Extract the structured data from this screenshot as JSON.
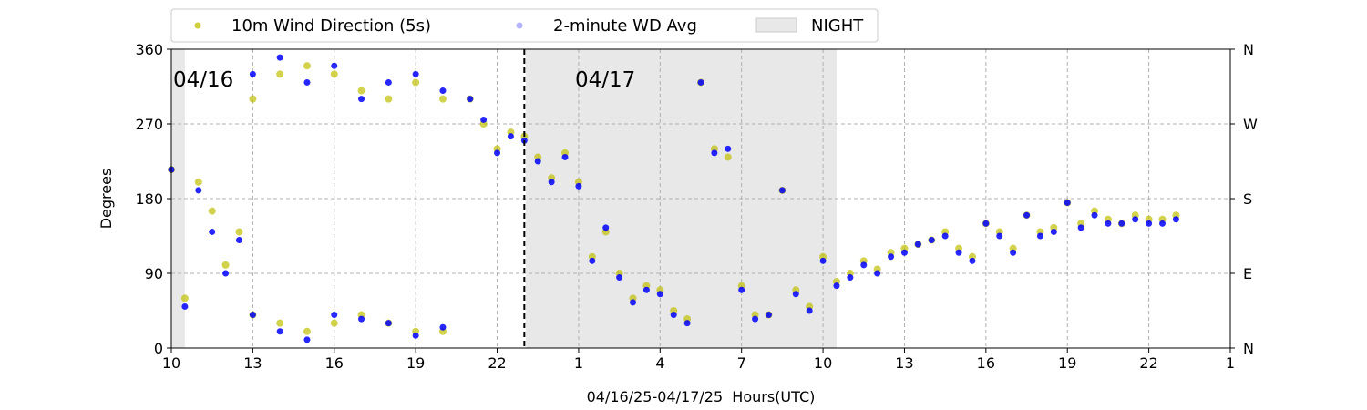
{
  "chart_data": {
    "type": "scatter",
    "title": "",
    "xlabel": "04/16/25-04/17/25  Hours(UTC)",
    "ylabel": "Degrees",
    "ylim": [
      0,
      360
    ],
    "xlim_hours": [
      10,
      49
    ],
    "x_tick_labels": [
      "10",
      "13",
      "16",
      "19",
      "22",
      "1",
      "4",
      "7",
      "10",
      "13",
      "16",
      "19",
      "22",
      "1"
    ],
    "x_tick_hours": [
      10,
      13,
      16,
      19,
      22,
      25,
      28,
      31,
      34,
      37,
      40,
      43,
      46,
      49
    ],
    "y_ticks": [
      0,
      90,
      180,
      270,
      360
    ],
    "y_tick_labels": [
      "0",
      "90",
      "180",
      "270",
      "360"
    ],
    "right_axis_labels": [
      "N",
      "E",
      "S",
      "W",
      "N"
    ],
    "grid": true,
    "legend_position": "top-left, above plot",
    "day_labels": [
      {
        "text": "04/16",
        "hour": 10
      },
      {
        "text": "04/17",
        "hour": 24.8
      }
    ],
    "midnight_hour": 23.0,
    "night_spans": [
      [
        10.0,
        10.5
      ],
      [
        23.05,
        34.5
      ]
    ],
    "series": [
      {
        "name": "10m Wind Direction (5s)",
        "color": "#bfbf00",
        "values": [
          [
            10.0,
            215
          ],
          [
            10.5,
            60
          ],
          [
            11,
            200
          ],
          [
            11.5,
            165
          ],
          [
            12,
            100
          ],
          [
            12.5,
            140
          ],
          [
            13,
            40
          ],
          [
            13,
            300
          ],
          [
            14,
            30
          ],
          [
            14,
            330
          ],
          [
            15,
            20
          ],
          [
            15,
            340
          ],
          [
            16,
            30
          ],
          [
            16,
            330
          ],
          [
            17,
            40
          ],
          [
            17,
            310
          ],
          [
            18,
            30
          ],
          [
            18,
            300
          ],
          [
            19,
            20
          ],
          [
            19,
            320
          ],
          [
            20,
            300
          ],
          [
            20,
            20
          ],
          [
            21,
            300
          ],
          [
            21.5,
            270
          ],
          [
            22,
            240
          ],
          [
            22.5,
            260
          ],
          [
            23,
            255
          ],
          [
            23.5,
            230
          ],
          [
            24,
            205
          ],
          [
            24.5,
            235
          ],
          [
            25,
            200
          ],
          [
            25.5,
            110
          ],
          [
            26,
            140
          ],
          [
            26.5,
            90
          ],
          [
            27,
            60
          ],
          [
            27.5,
            75
          ],
          [
            28,
            70
          ],
          [
            28.5,
            45
          ],
          [
            29,
            35
          ],
          [
            29.5,
            320
          ],
          [
            30,
            240
          ],
          [
            30.5,
            230
          ],
          [
            31,
            75
          ],
          [
            31.5,
            40
          ],
          [
            32,
            40
          ],
          [
            32.5,
            190
          ],
          [
            33,
            70
          ],
          [
            33.5,
            50
          ],
          [
            34,
            110
          ],
          [
            34.5,
            80
          ],
          [
            35,
            90
          ],
          [
            35.5,
            105
          ],
          [
            36,
            95
          ],
          [
            36.5,
            115
          ],
          [
            37,
            120
          ],
          [
            37.5,
            125
          ],
          [
            38,
            130
          ],
          [
            38.5,
            140
          ],
          [
            39,
            120
          ],
          [
            39.5,
            110
          ],
          [
            40,
            150
          ],
          [
            40.5,
            140
          ],
          [
            41,
            120
          ],
          [
            41.5,
            160
          ],
          [
            42,
            140
          ],
          [
            42.5,
            145
          ],
          [
            43,
            175
          ],
          [
            43.5,
            150
          ],
          [
            44,
            165
          ],
          [
            44.5,
            155
          ],
          [
            45,
            150
          ],
          [
            45.5,
            160
          ],
          [
            46,
            155
          ],
          [
            46.5,
            155
          ],
          [
            47,
            160
          ]
        ]
      },
      {
        "name": "2-minute WD Avg",
        "color": "#0000ff",
        "values": [
          [
            10.0,
            215
          ],
          [
            10.5,
            50
          ],
          [
            11,
            190
          ],
          [
            11.5,
            140
          ],
          [
            12,
            90
          ],
          [
            12.5,
            130
          ],
          [
            13,
            330
          ],
          [
            13,
            40
          ],
          [
            14,
            350
          ],
          [
            14,
            20
          ],
          [
            15,
            320
          ],
          [
            15,
            10
          ],
          [
            16,
            340
          ],
          [
            16,
            40
          ],
          [
            17,
            300
          ],
          [
            17,
            35
          ],
          [
            18,
            320
          ],
          [
            18,
            30
          ],
          [
            19,
            330
          ],
          [
            19,
            15
          ],
          [
            20,
            310
          ],
          [
            20,
            25
          ],
          [
            21,
            300
          ],
          [
            21.5,
            275
          ],
          [
            22,
            235
          ],
          [
            22.5,
            255
          ],
          [
            23,
            250
          ],
          [
            23.5,
            225
          ],
          [
            24,
            200
          ],
          [
            24.5,
            230
          ],
          [
            25,
            195
          ],
          [
            25.5,
            105
          ],
          [
            26,
            145
          ],
          [
            26.5,
            85
          ],
          [
            27,
            55
          ],
          [
            27.5,
            70
          ],
          [
            28,
            65
          ],
          [
            28.5,
            40
          ],
          [
            29,
            30
          ],
          [
            29.5,
            320
          ],
          [
            30,
            235
          ],
          [
            30.5,
            240
          ],
          [
            31,
            70
          ],
          [
            31.5,
            35
          ],
          [
            32,
            40
          ],
          [
            32.5,
            190
          ],
          [
            33,
            65
          ],
          [
            33.5,
            45
          ],
          [
            34,
            105
          ],
          [
            34.5,
            75
          ],
          [
            35,
            85
          ],
          [
            35.5,
            100
          ],
          [
            36,
            90
          ],
          [
            36.5,
            110
          ],
          [
            37,
            115
          ],
          [
            37.5,
            125
          ],
          [
            38,
            130
          ],
          [
            38.5,
            135
          ],
          [
            39,
            115
          ],
          [
            39.5,
            105
          ],
          [
            40,
            150
          ],
          [
            40.5,
            135
          ],
          [
            41,
            115
          ],
          [
            41.5,
            160
          ],
          [
            42,
            135
          ],
          [
            42.5,
            140
          ],
          [
            43,
            175
          ],
          [
            43.5,
            145
          ],
          [
            44,
            160
          ],
          [
            44.5,
            150
          ],
          [
            45,
            150
          ],
          [
            45.5,
            155
          ],
          [
            46,
            150
          ],
          [
            46.5,
            150
          ],
          [
            47,
            155
          ]
        ]
      }
    ],
    "night_legend_label": "NIGHT"
  }
}
